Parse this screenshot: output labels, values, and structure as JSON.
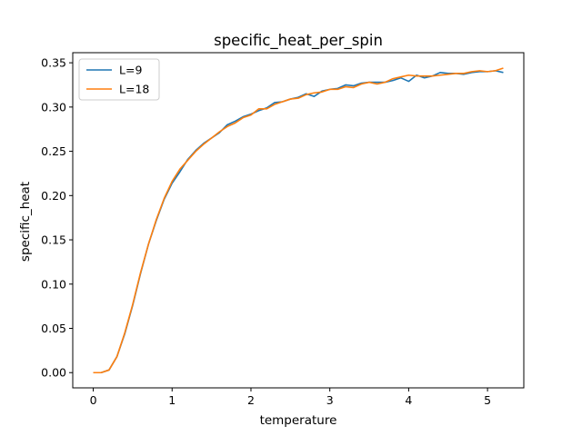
{
  "chart_data": {
    "type": "line",
    "title": "specific_heat_per_spin",
    "xlabel": "temperature",
    "ylabel": "specific_heat",
    "xlim": [
      -0.26,
      5.46
    ],
    "ylim": [
      -0.0172,
      0.3614
    ],
    "xticks": [
      0,
      1,
      2,
      3,
      4,
      5
    ],
    "xtick_labels": [
      "0",
      "1",
      "2",
      "3",
      "4",
      "5"
    ],
    "yticks": [
      0.0,
      0.05,
      0.1,
      0.15,
      0.2,
      0.25,
      0.3,
      0.35
    ],
    "ytick_labels": [
      "0.00",
      "0.05",
      "0.10",
      "0.15",
      "0.20",
      "0.25",
      "0.30",
      "0.35"
    ],
    "grid": false,
    "legend_position": "top-left",
    "x": [
      0.0,
      0.1,
      0.2,
      0.3,
      0.4,
      0.5,
      0.6,
      0.7,
      0.8,
      0.9,
      1.0,
      1.1,
      1.2,
      1.3,
      1.4,
      1.5,
      1.6,
      1.7,
      1.8,
      1.9,
      2.0,
      2.1,
      2.2,
      2.3,
      2.4,
      2.5,
      2.6,
      2.7,
      2.8,
      2.9,
      3.0,
      3.1,
      3.2,
      3.3,
      3.4,
      3.5,
      3.6,
      3.7,
      3.8,
      3.9,
      4.0,
      4.1,
      4.2,
      4.3,
      4.4,
      4.5,
      4.6,
      4.7,
      4.8,
      4.9,
      5.0,
      5.1,
      5.2
    ],
    "series": [
      {
        "name": "L=9",
        "color": "#1f77b4",
        "values": [
          0.0,
          0.0,
          0.003,
          0.018,
          0.044,
          0.076,
          0.112,
          0.145,
          0.172,
          0.196,
          0.214,
          0.227,
          0.241,
          0.251,
          0.259,
          0.265,
          0.271,
          0.28,
          0.284,
          0.289,
          0.292,
          0.296,
          0.299,
          0.305,
          0.306,
          0.309,
          0.311,
          0.315,
          0.312,
          0.318,
          0.32,
          0.321,
          0.325,
          0.324,
          0.327,
          0.328,
          0.328,
          0.328,
          0.33,
          0.333,
          0.329,
          0.336,
          0.333,
          0.335,
          0.339,
          0.338,
          0.338,
          0.337,
          0.339,
          0.34,
          0.34,
          0.341,
          0.339
        ]
      },
      {
        "name": "L=18",
        "color": "#ff7f0e",
        "values": [
          0.0,
          0.0,
          0.003,
          0.018,
          0.045,
          0.077,
          0.113,
          0.145,
          0.173,
          0.197,
          0.216,
          0.23,
          0.24,
          0.25,
          0.258,
          0.265,
          0.272,
          0.278,
          0.282,
          0.288,
          0.291,
          0.298,
          0.298,
          0.303,
          0.306,
          0.309,
          0.31,
          0.314,
          0.316,
          0.317,
          0.32,
          0.32,
          0.323,
          0.322,
          0.326,
          0.328,
          0.326,
          0.328,
          0.332,
          0.334,
          0.336,
          0.335,
          0.335,
          0.335,
          0.336,
          0.337,
          0.338,
          0.338,
          0.34,
          0.341,
          0.34,
          0.341,
          0.344
        ]
      }
    ]
  }
}
